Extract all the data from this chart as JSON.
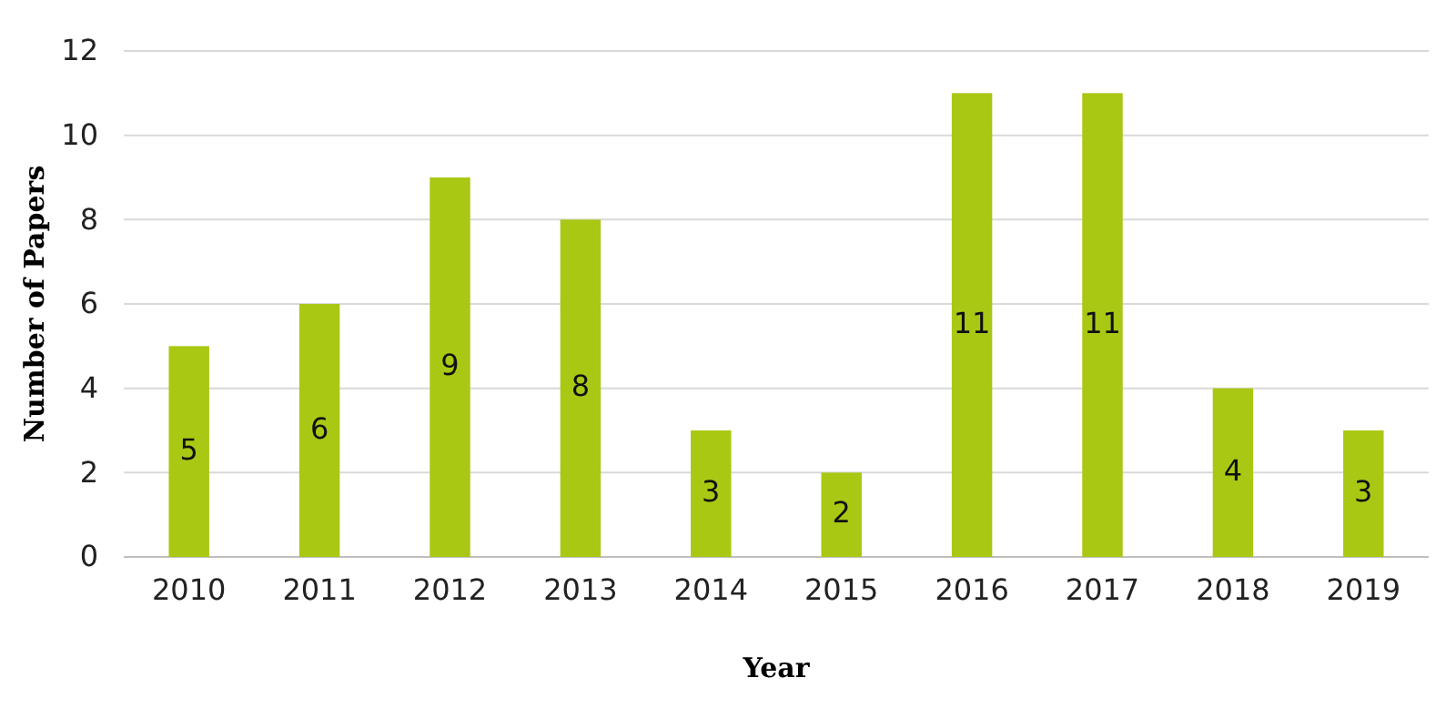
{
  "chart_data": {
    "type": "bar",
    "xlabel": "Year",
    "ylabel": "Number of Papers",
    "categories": [
      "2010",
      "2011",
      "2012",
      "2013",
      "2014",
      "2015",
      "2016",
      "2017",
      "2018",
      "2019"
    ],
    "values": [
      5,
      6,
      9,
      8,
      3,
      2,
      11,
      11,
      4,
      3
    ],
    "color": "#a8c814",
    "ylim": [
      0,
      12
    ],
    "yticks": [
      0,
      2,
      4,
      6,
      8,
      10,
      12
    ],
    "grid": "y",
    "data_labels": true
  }
}
